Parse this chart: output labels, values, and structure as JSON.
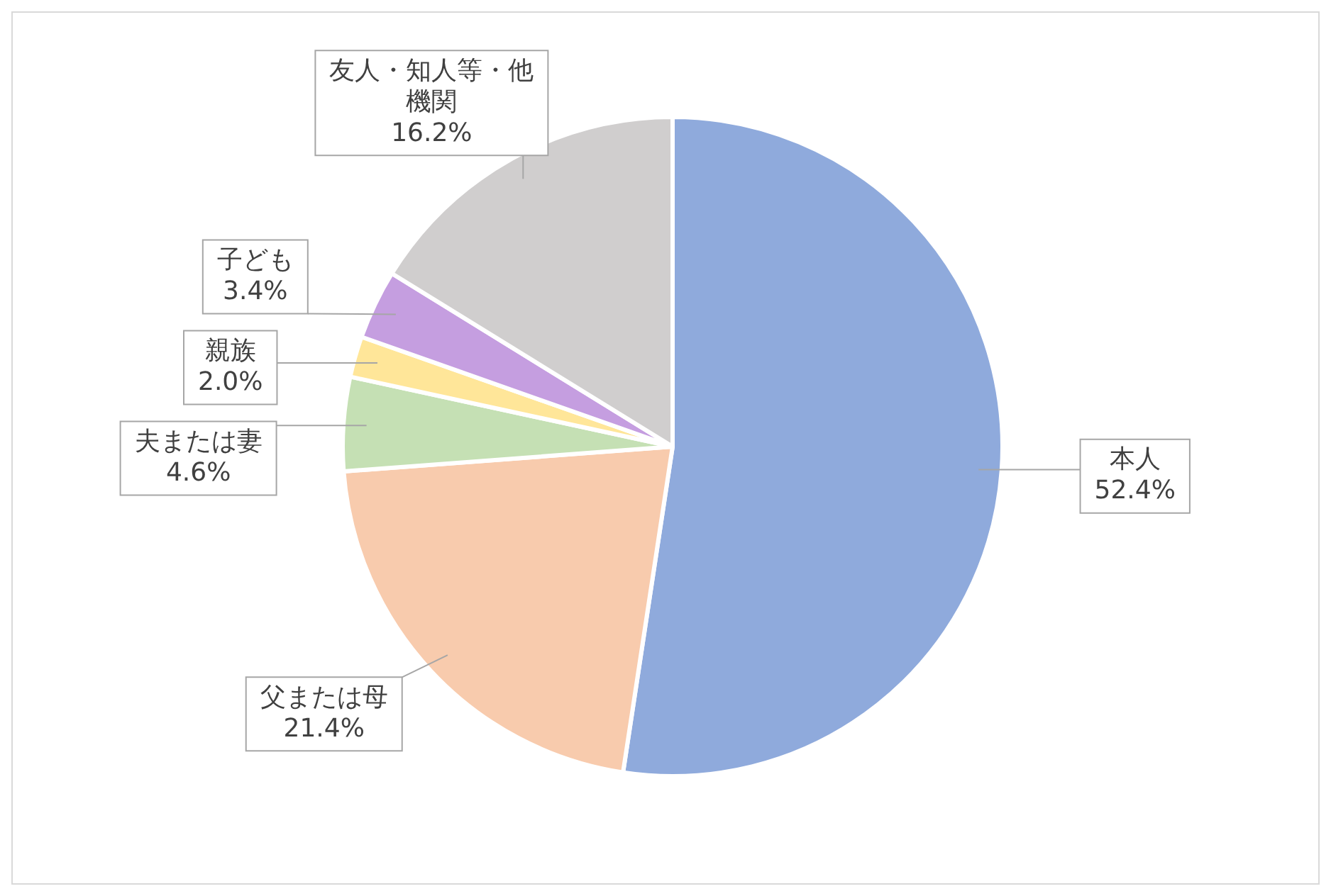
{
  "chart_data": {
    "type": "pie",
    "categories": [
      "本人",
      "父または母",
      "夫または妻",
      "親族",
      "子ども",
      "友人・知人等・他機関"
    ],
    "values": [
      52.4,
      21.4,
      4.6,
      2.0,
      3.4,
      16.2
    ],
    "colors": [
      "#8faadc",
      "#f8cbad",
      "#c5e0b4",
      "#ffe699",
      "#c59ee0",
      "#d0cece"
    ],
    "value_labels": [
      "52.4%",
      "21.4%",
      "4.6%",
      "2.0%",
      "3.4%",
      "16.2%"
    ],
    "legend": false
  }
}
